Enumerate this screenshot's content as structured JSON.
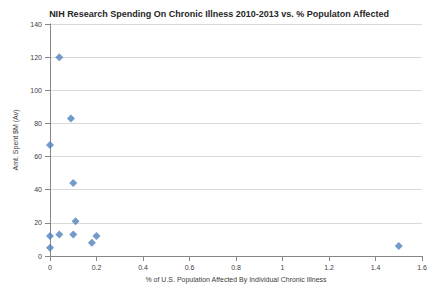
{
  "chart_data": {
    "type": "scatter",
    "title": "NIH Research Spending On Chronic Illness 2010-2013 vs. % Populaton Affected",
    "x_label": "% of U.S. Population Affected By Individual Chronic Illness",
    "y_label": "Amt. Spent $M (Av)",
    "x": [
      0,
      0,
      0,
      0.04,
      0.04,
      0.09,
      0.1,
      0.1,
      0.11,
      0.18,
      0.2,
      1.5
    ],
    "values": [
      67,
      12,
      5,
      120,
      13,
      83,
      44,
      13,
      21,
      8,
      12,
      6
    ],
    "color": "#4f81bd",
    "marker": "diamond",
    "xlim": [
      0,
      1.6
    ],
    "xticks": [
      0,
      0.2,
      0.4,
      0.6,
      0.8,
      1,
      1.2,
      1.4,
      1.6
    ],
    "ylim": [
      0,
      140
    ],
    "yticks": [
      0,
      20,
      40,
      60,
      80,
      100,
      120,
      140
    ],
    "grid": true
  }
}
